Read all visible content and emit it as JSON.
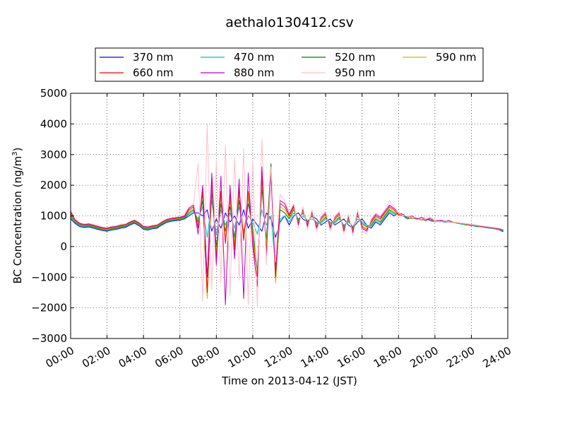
{
  "chart_data": {
    "type": "line",
    "title": "aethalo130412.csv",
    "xlabel": "Time on 2013-04-12 (JST)",
    "ylabel": "BC Concentration (ng/m",
    "ylabel_sup": "3",
    "ylabel_end": ")",
    "x_unit": "hour",
    "xlim": [
      0,
      24
    ],
    "ylim": [
      -3000,
      5000
    ],
    "x_ticks": [
      0,
      2,
      4,
      6,
      8,
      10,
      12,
      14,
      16,
      18,
      20,
      22,
      24
    ],
    "x_tick_labels": [
      "00:00",
      "02:00",
      "04:00",
      "06:00",
      "08:00",
      "10:00",
      "12:00",
      "14:00",
      "16:00",
      "18:00",
      "20:00",
      "22:00",
      "24:00"
    ],
    "y_ticks": [
      -3000,
      -2000,
      -1000,
      0,
      1000,
      2000,
      3000,
      4000,
      5000
    ],
    "y_tick_labels": [
      "−3000",
      "−2000",
      "−1000",
      "0",
      "1000",
      "2000",
      "3000",
      "4000",
      "5000"
    ],
    "grid": true,
    "legend": {
      "position": "top",
      "columns": 4
    },
    "x": [
      0,
      0.25,
      0.5,
      0.75,
      1,
      1.25,
      1.5,
      1.75,
      2,
      2.25,
      2.5,
      2.75,
      3,
      3.25,
      3.5,
      3.75,
      4,
      4.25,
      4.5,
      4.75,
      5,
      5.25,
      5.5,
      5.75,
      6,
      6.25,
      6.5,
      6.75,
      7,
      7.25,
      7.5,
      7.75,
      8,
      8.25,
      8.5,
      8.75,
      9,
      9.25,
      9.5,
      9.75,
      10,
      10.25,
      10.5,
      10.75,
      11,
      11.25,
      11.5,
      11.75,
      12,
      12.25,
      12.5,
      12.75,
      13,
      13.25,
      13.5,
      13.75,
      14,
      14.25,
      14.5,
      14.75,
      15,
      15.25,
      15.5,
      15.75,
      16,
      16.25,
      16.5,
      16.75,
      17,
      17.25,
      17.5,
      17.75,
      18,
      18.25,
      18.5,
      18.75,
      19,
      19.25,
      19.5,
      19.75,
      20,
      20.25,
      20.5,
      20.75,
      21,
      21.25,
      21.5,
      21.75,
      22,
      22.25,
      22.5,
      22.75,
      23,
      23.25,
      23.5,
      23.75
    ],
    "series": [
      {
        "name": "370 nm",
        "color": "#0000ff",
        "values": [
          900,
          750,
          650,
          620,
          640,
          600,
          560,
          520,
          500,
          540,
          560,
          600,
          620,
          700,
          760,
          680,
          560,
          540,
          580,
          600,
          700,
          780,
          820,
          840,
          860,
          900,
          1000,
          1100,
          1100,
          1000,
          1200,
          500,
          900,
          600,
          1100,
          800,
          1000,
          700,
          1200,
          600,
          900,
          700,
          500,
          1100,
          900,
          300,
          800,
          1000,
          700,
          1000,
          1100,
          900,
          800,
          1000,
          900,
          700,
          800,
          900,
          700,
          800,
          900,
          700,
          600,
          800,
          900,
          700,
          600,
          800,
          700,
          900,
          1100,
          1000,
          1100,
          1000,
          900,
          950,
          900,
          950,
          900,
          850,
          800,
          850,
          850,
          800,
          800,
          750,
          750,
          700,
          700,
          650,
          650,
          620,
          600,
          580,
          550,
          480
        ]
      },
      {
        "name": "470 nm",
        "color": "#00bfbf",
        "values": [
          950,
          780,
          670,
          640,
          660,
          620,
          580,
          540,
          520,
          560,
          580,
          620,
          640,
          720,
          780,
          700,
          580,
          560,
          600,
          620,
          720,
          800,
          840,
          860,
          880,
          920,
          1050,
          1150,
          900,
          1300,
          300,
          1500,
          400,
          1200,
          700,
          1100,
          600,
          1300,
          500,
          1000,
          800,
          400,
          1200,
          700,
          1000,
          -700,
          900,
          1000,
          800,
          1100,
          900,
          1000,
          850,
          900,
          800,
          750,
          900,
          800,
          750,
          900,
          700,
          800,
          650,
          900,
          800,
          700,
          650,
          850,
          750,
          950,
          1150,
          1050,
          1100,
          1000,
          950,
          900,
          950,
          900,
          850,
          900,
          800,
          850,
          800,
          800,
          780,
          760,
          720,
          700,
          680,
          660,
          640,
          620,
          600,
          580,
          560,
          500
        ]
      },
      {
        "name": "520 nm",
        "color": "#008000",
        "values": [
          1000,
          800,
          700,
          660,
          680,
          640,
          600,
          560,
          540,
          580,
          600,
          640,
          660,
          740,
          800,
          720,
          600,
          580,
          620,
          640,
          740,
          820,
          860,
          880,
          900,
          940,
          1100,
          1200,
          800,
          1500,
          -1600,
          1800,
          0,
          1400,
          500,
          1300,
          300,
          1500,
          400,
          1400,
          600,
          -800,
          1900,
          200,
          2700,
          -1100,
          1200,
          1100,
          900,
          1200,
          850,
          1100,
          800,
          1000,
          750,
          800,
          950,
          750,
          800,
          950,
          650,
          850,
          600,
          1000,
          750,
          650,
          700,
          900,
          800,
          1000,
          1200,
          1100,
          1050,
          1000,
          900,
          950,
          900,
          900,
          850,
          950,
          850,
          800,
          850,
          800,
          800,
          750,
          750,
          720,
          700,
          680,
          660,
          640,
          620,
          600,
          580,
          520
        ]
      },
      {
        "name": "590 nm",
        "color": "#bfbf00",
        "values": [
          1050,
          820,
          720,
          680,
          700,
          660,
          620,
          580,
          560,
          600,
          620,
          660,
          680,
          760,
          820,
          740,
          620,
          600,
          640,
          660,
          760,
          840,
          880,
          900,
          920,
          960,
          1150,
          1250,
          700,
          1700,
          -1700,
          2000,
          -200,
          1600,
          300,
          1500,
          100,
          1700,
          300,
          1600,
          400,
          -900,
          2100,
          0,
          2400,
          -1200,
          1300,
          1200,
          950,
          1250,
          800,
          1150,
          750,
          1050,
          700,
          850,
          1000,
          700,
          850,
          1000,
          600,
          900,
          550,
          1050,
          700,
          600,
          750,
          950,
          850,
          1050,
          1250,
          1150,
          1000,
          1050,
          950,
          900,
          950,
          850,
          900,
          900,
          800,
          850,
          800,
          850,
          780,
          760,
          740,
          720,
          700,
          680,
          650,
          630,
          610,
          590,
          570,
          530
        ]
      },
      {
        "name": "660 nm",
        "color": "#ff0000",
        "values": [
          1100,
          850,
          740,
          700,
          720,
          680,
          640,
          600,
          580,
          620,
          640,
          680,
          700,
          780,
          840,
          760,
          640,
          620,
          660,
          680,
          780,
          860,
          900,
          920,
          940,
          980,
          1200,
          1300,
          600,
          1800,
          -1500,
          2200,
          -400,
          1800,
          100,
          1700,
          -100,
          1900,
          200,
          1800,
          200,
          -1000,
          2300,
          -200,
          2600,
          -1000,
          1400,
          1300,
          1000,
          1300,
          750,
          1200,
          700,
          1100,
          650,
          900,
          1050,
          650,
          900,
          1050,
          550,
          950,
          500,
          1100,
          650,
          550,
          800,
          1000,
          900,
          1100,
          1300,
          1200,
          1050,
          1000,
          1000,
          950,
          900,
          900,
          850,
          950,
          850,
          800,
          850,
          800,
          800,
          780,
          750,
          730,
          710,
          690,
          660,
          640,
          620,
          600,
          580,
          540
        ]
      },
      {
        "name": "880 nm",
        "color": "#bf00bf",
        "values": [
          1150,
          880,
          760,
          720,
          740,
          700,
          660,
          620,
          600,
          640,
          660,
          700,
          720,
          800,
          860,
          780,
          660,
          640,
          680,
          700,
          800,
          880,
          920,
          940,
          960,
          1000,
          1250,
          1350,
          400,
          2000,
          -1000,
          2400,
          -600,
          2300,
          -1900,
          2000,
          -400,
          2200,
          -1700,
          2400,
          0,
          -1300,
          2600,
          -400,
          2300,
          -800,
          1500,
          1400,
          1050,
          1350,
          700,
          1250,
          650,
          1150,
          600,
          950,
          1100,
          600,
          950,
          1100,
          500,
          1000,
          450,
          1150,
          600,
          500,
          850,
          1050,
          950,
          1150,
          1350,
          1250,
          1100,
          1050,
          950,
          1000,
          900,
          950,
          900,
          900,
          850,
          850,
          800,
          850,
          800,
          780,
          760,
          740,
          720,
          700,
          670,
          650,
          630,
          610,
          590,
          550
        ]
      },
      {
        "name": "950 nm",
        "color": "#ffc0cb",
        "values": [
          1200,
          900,
          780,
          740,
          760,
          720,
          680,
          640,
          620,
          660,
          680,
          720,
          740,
          820,
          880,
          800,
          680,
          660,
          700,
          720,
          820,
          900,
          940,
          960,
          980,
          1050,
          1300,
          1400,
          2700,
          -1800,
          4000,
          -1400,
          2800,
          -1200,
          3300,
          -1600,
          2900,
          -1100,
          3200,
          -1900,
          2800,
          -2000,
          3500,
          -600,
          2600,
          -500,
          1700,
          1500,
          1100,
          1400,
          600,
          1300,
          550,
          1200,
          500,
          1000,
          1150,
          500,
          1000,
          1150,
          400,
          1050,
          350,
          1200,
          500,
          400,
          900,
          1100,
          1000,
          1200,
          1500,
          1300,
          1100,
          1000,
          1000,
          950,
          950,
          900,
          900,
          950,
          850,
          800,
          850,
          800,
          800,
          780,
          760,
          740,
          720,
          700,
          680,
          660,
          640,
          620,
          600,
          560
        ]
      }
    ]
  }
}
